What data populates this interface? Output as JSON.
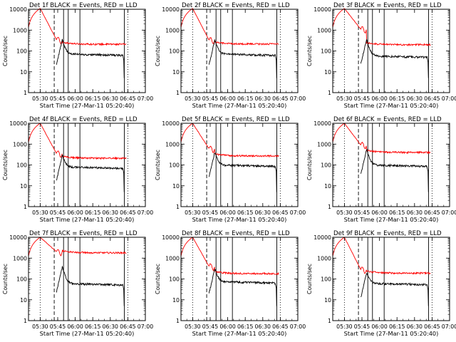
{
  "chart_data": {
    "type": "line",
    "ylabel": "Counts/sec",
    "xlabel": "Start Time (27-Mar-11 05:20:40)",
    "y_scale": "log",
    "ylim": [
      1,
      10000
    ],
    "y_ticks": [
      1,
      10,
      100,
      1000,
      10000
    ],
    "y_tick_labels": [
      "1",
      "10",
      "100",
      "1000",
      "10000"
    ],
    "xlim": [
      "05:20",
      "07:00"
    ],
    "x_ticks": [
      "05:30",
      "05:45",
      "06:00",
      "06:15",
      "06:30",
      "06:45",
      "07:00"
    ],
    "grid": false,
    "event_markers": [
      {
        "style": "dotted",
        "time": "05:30"
      },
      {
        "style": "dashed",
        "time": "05:42"
      },
      {
        "style": "solid",
        "time": "05:50"
      },
      {
        "style": "solid",
        "time": "05:54"
      },
      {
        "style": "solid",
        "time": "06:04"
      },
      {
        "style": "solid",
        "time": "06:42"
      },
      {
        "style": "dotted",
        "time": "06:45"
      }
    ],
    "series_colors": {
      "events": "#000000",
      "lld": "#ff0000"
    },
    "panels": [
      {
        "title": "Det 1f BLACK = Events, RED = LLD",
        "peak": 11000,
        "lld_level": 210,
        "lld_drop": 340,
        "events_level": 72,
        "events_spike": 360
      },
      {
        "title": "Det 2f BLACK = Events, RED = LLD",
        "peak": 11000,
        "lld_level": 215,
        "lld_drop": 330,
        "events_level": 72,
        "events_spike": 340
      },
      {
        "title": "Det 3f BLACK = Events, RED = LLD",
        "peak": 11000,
        "lld_level": 200,
        "lld_drop": 1100,
        "events_level": 58,
        "events_spike": 360
      },
      {
        "title": "Det 4f BLACK = Events, RED = LLD",
        "peak": 10000,
        "lld_level": 210,
        "lld_drop": 350,
        "events_level": 80,
        "events_spike": 300
      },
      {
        "title": "Det 5f BLACK = Events, RED = LLD",
        "peak": 10000,
        "lld_level": 270,
        "lld_drop": 600,
        "events_level": 100,
        "events_spike": 420
      },
      {
        "title": "Det 6f BLACK = Events, RED = LLD",
        "peak": 10000,
        "lld_level": 400,
        "lld_drop": 900,
        "events_level": 100,
        "events_spike": 560
      },
      {
        "title": "Det 7f BLACK = Events, RED = LLD",
        "peak": 10000,
        "lld_level": 1800,
        "lld_drop": 2000,
        "events_level": 60,
        "events_spike": 380
      },
      {
        "title": "Det 8f BLACK = Events, RED = LLD",
        "peak": 10000,
        "lld_level": 180,
        "lld_drop": 400,
        "events_level": 75,
        "events_spike": 320
      },
      {
        "title": "Det 9f BLACK = Events, RED = LLD",
        "peak": 10000,
        "lld_level": 190,
        "lld_drop": 280,
        "events_level": 62,
        "events_spike": 200
      }
    ]
  }
}
